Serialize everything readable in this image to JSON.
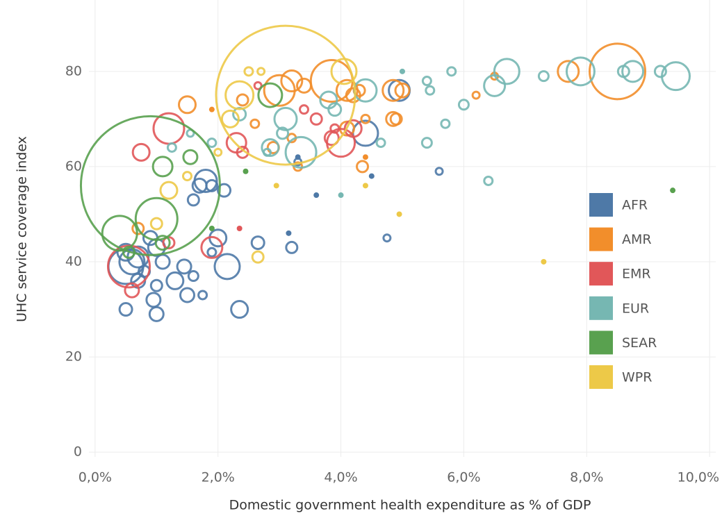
{
  "chart_data": {
    "type": "scatter",
    "bubble": true,
    "x_label": "Domestic government health expenditure as % of GDP",
    "y_label": "UHC service coverage index",
    "xlim": [
      -0.1,
      10.1
    ],
    "ylim": [
      -1,
      95
    ],
    "xticks": [
      {
        "value": 0,
        "label": "0,0%"
      },
      {
        "value": 2,
        "label": "2,0%"
      },
      {
        "value": 4,
        "label": "4,0%"
      },
      {
        "value": 6,
        "label": "6,0%"
      },
      {
        "value": 8,
        "label": "8,0%"
      },
      {
        "value": 10,
        "label": "10,0%"
      }
    ],
    "yticks": [
      0,
      20,
      40,
      60,
      80
    ],
    "grid": true,
    "legend": "right",
    "series": [
      {
        "name": "AFR",
        "color": "#4e79a7",
        "x": [
          0.5,
          0.6,
          0.5,
          0.7,
          0.9,
          1.0,
          1.1,
          0.7,
          0.8,
          1.0,
          0.95,
          1.0,
          0.5,
          1.3,
          1.5,
          1.45,
          1.6,
          1.75,
          1.9,
          2.0,
          2.15,
          2.35,
          2.65,
          3.2,
          1.7,
          1.6,
          1.9,
          2.1,
          1.8,
          3.15,
          3.6,
          4.4,
          4.95,
          4.5,
          4.75,
          5.6,
          3.3,
          3.3
        ],
        "values": [
          39,
          40,
          42,
          41,
          45,
          43,
          40,
          36,
          38,
          35,
          32,
          29,
          30,
          36,
          33,
          39,
          37,
          33,
          42,
          45,
          39,
          30,
          44,
          43,
          56,
          53,
          56,
          55,
          57,
          46,
          54,
          67,
          76,
          58,
          45,
          59,
          61,
          62
        ],
        "sizes": [
          25,
          18,
          12,
          15,
          10,
          12,
          10,
          10,
          8,
          8,
          10,
          10,
          9,
          12,
          10,
          10,
          7,
          6,
          6,
          12,
          18,
          12,
          9,
          8,
          10,
          8,
          8,
          9,
          16,
          4,
          4,
          18,
          15,
          4,
          5,
          5,
          5,
          4
        ]
      },
      {
        "name": "AMR",
        "color": "#f28e2b",
        "x": [
          1.5,
          2.4,
          3.0,
          3.2,
          3.4,
          3.85,
          4.1,
          4.2,
          4.3,
          4.85,
          4.85,
          4.9,
          4.4,
          4.35,
          3.3,
          2.9,
          3.2,
          4.1,
          6.2,
          6.5,
          7.7,
          8.5,
          0.7,
          1.9,
          2.6,
          4.4,
          5.0
        ],
        "values": [
          73,
          74,
          76,
          78,
          77,
          78,
          76,
          75,
          76,
          76,
          70,
          70,
          70,
          60,
          60,
          64,
          66,
          68,
          75,
          79,
          80,
          80,
          47,
          72,
          69,
          62,
          76
        ],
        "sizes": [
          12,
          8,
          22,
          15,
          10,
          30,
          15,
          10,
          8,
          15,
          10,
          8,
          6,
          8,
          6,
          8,
          6,
          10,
          5,
          5,
          15,
          40,
          8,
          4,
          6,
          4,
          10
        ]
      },
      {
        "name": "EMR",
        "color": "#e15759",
        "x": [
          1.2,
          0.75,
          1.2,
          1.9,
          0.6,
          0.55,
          2.3,
          2.4,
          2.65,
          3.4,
          3.6,
          3.85,
          4.0,
          4.2,
          2.35,
          3.9
        ],
        "values": [
          68,
          63,
          44,
          43,
          34,
          39,
          65,
          63,
          77,
          72,
          70,
          66,
          65,
          68,
          47,
          68
        ],
        "sizes": [
          22,
          12,
          8,
          15,
          10,
          30,
          14,
          8,
          5,
          6,
          8,
          10,
          20,
          12,
          4,
          6
        ]
      },
      {
        "name": "EUR",
        "color": "#76b7b2",
        "x": [
          2.35,
          2.85,
          3.1,
          3.35,
          3.8,
          3.9,
          4.4,
          4.65,
          5.0,
          5.4,
          5.45,
          5.4,
          5.7,
          5.8,
          6.0,
          6.5,
          6.7,
          7.3,
          7.9,
          8.6,
          8.75,
          9.2,
          9.45,
          6.4,
          4.0,
          1.55,
          1.25,
          1.9,
          2.8,
          3.05
        ],
        "values": [
          71,
          64,
          70,
          63,
          74,
          72,
          76,
          65,
          80,
          78,
          76,
          65,
          69,
          80,
          73,
          77,
          80,
          79,
          80,
          80,
          80,
          80,
          79,
          57,
          54,
          67,
          64,
          65,
          63,
          67
        ],
        "sizes": [
          9,
          12,
          16,
          22,
          12,
          9,
          16,
          6,
          4,
          6,
          6,
          7,
          6,
          6,
          7,
          15,
          18,
          7,
          20,
          8,
          15,
          8,
          20,
          6,
          4,
          5,
          6,
          6,
          5,
          8
        ]
      },
      {
        "name": "SEAR",
        "color": "#59a14f",
        "x": [
          0.9,
          0.4,
          1.0,
          1.1,
          1.55,
          2.85,
          1.1,
          0.55,
          2.45,
          9.4,
          1.9
        ],
        "values": [
          56,
          46,
          49,
          60,
          62,
          75,
          44,
          42,
          59,
          55,
          47
        ],
        "sizes": [
          100,
          25,
          30,
          14,
          10,
          17,
          10,
          8,
          4,
          4,
          4
        ]
      },
      {
        "name": "WPR",
        "color": "#edc948",
        "x": [
          3.1,
          4.05,
          2.2,
          2.35,
          2.5,
          2.7,
          1.2,
          1.0,
          2.65,
          2.95,
          4.4,
          4.95,
          7.3,
          2.0,
          1.5
        ],
        "values": [
          75,
          80,
          70,
          75,
          80,
          80,
          55,
          48,
          41,
          56,
          56,
          50,
          40,
          63,
          58
        ],
        "sizes": [
          100,
          18,
          12,
          20,
          6,
          5,
          12,
          8,
          8,
          4,
          4,
          4,
          4,
          5,
          6
        ]
      }
    ]
  }
}
